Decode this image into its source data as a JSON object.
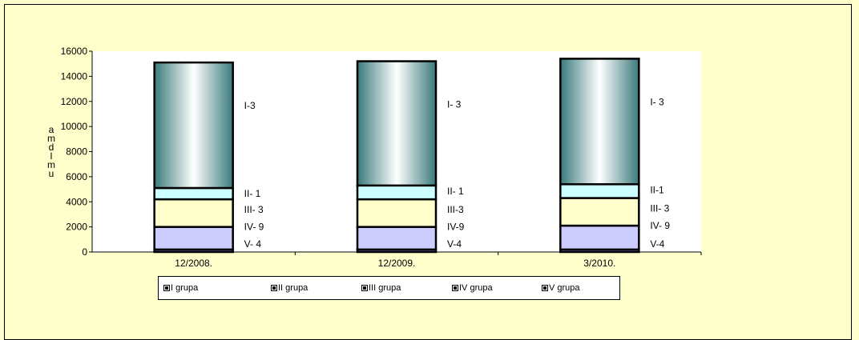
{
  "chart_data": {
    "type": "bar",
    "stacked": true,
    "categories": [
      "12/2008.",
      "12/2009.",
      "3/2010."
    ],
    "series": [
      {
        "name": "I grupa",
        "values": [
          10000,
          9900,
          10000
        ],
        "color": "#3d7d80"
      },
      {
        "name": "II grupa",
        "values": [
          900,
          1100,
          1100
        ],
        "color": "#ccffff"
      },
      {
        "name": "III grupa",
        "values": [
          2200,
          2200,
          2200
        ],
        "color": "#ffffcc"
      },
      {
        "name": "IV grupa",
        "values": [
          1800,
          1800,
          1900
        ],
        "color": "#ccccff"
      },
      {
        "name": "V grupa",
        "values": [
          200,
          200,
          200
        ],
        "color": "#6f6fd4"
      }
    ],
    "segment_labels": [
      [
        "I-3",
        "II- 1",
        "III- 3",
        "IV- 9",
        "V- 4"
      ],
      [
        "I- 3",
        "II- 1",
        "III-3",
        "IV-9",
        "V-4"
      ],
      [
        "I- 3",
        "II-1",
        "III- 3",
        "IV- 9",
        "V-4"
      ]
    ],
    "yticks": [
      0,
      2000,
      4000,
      6000,
      8000,
      10000,
      12000,
      14000,
      16000
    ],
    "ylim": [
      0,
      16000
    ],
    "ylabel": "a m d l m u",
    "legend_position": "bottom"
  }
}
